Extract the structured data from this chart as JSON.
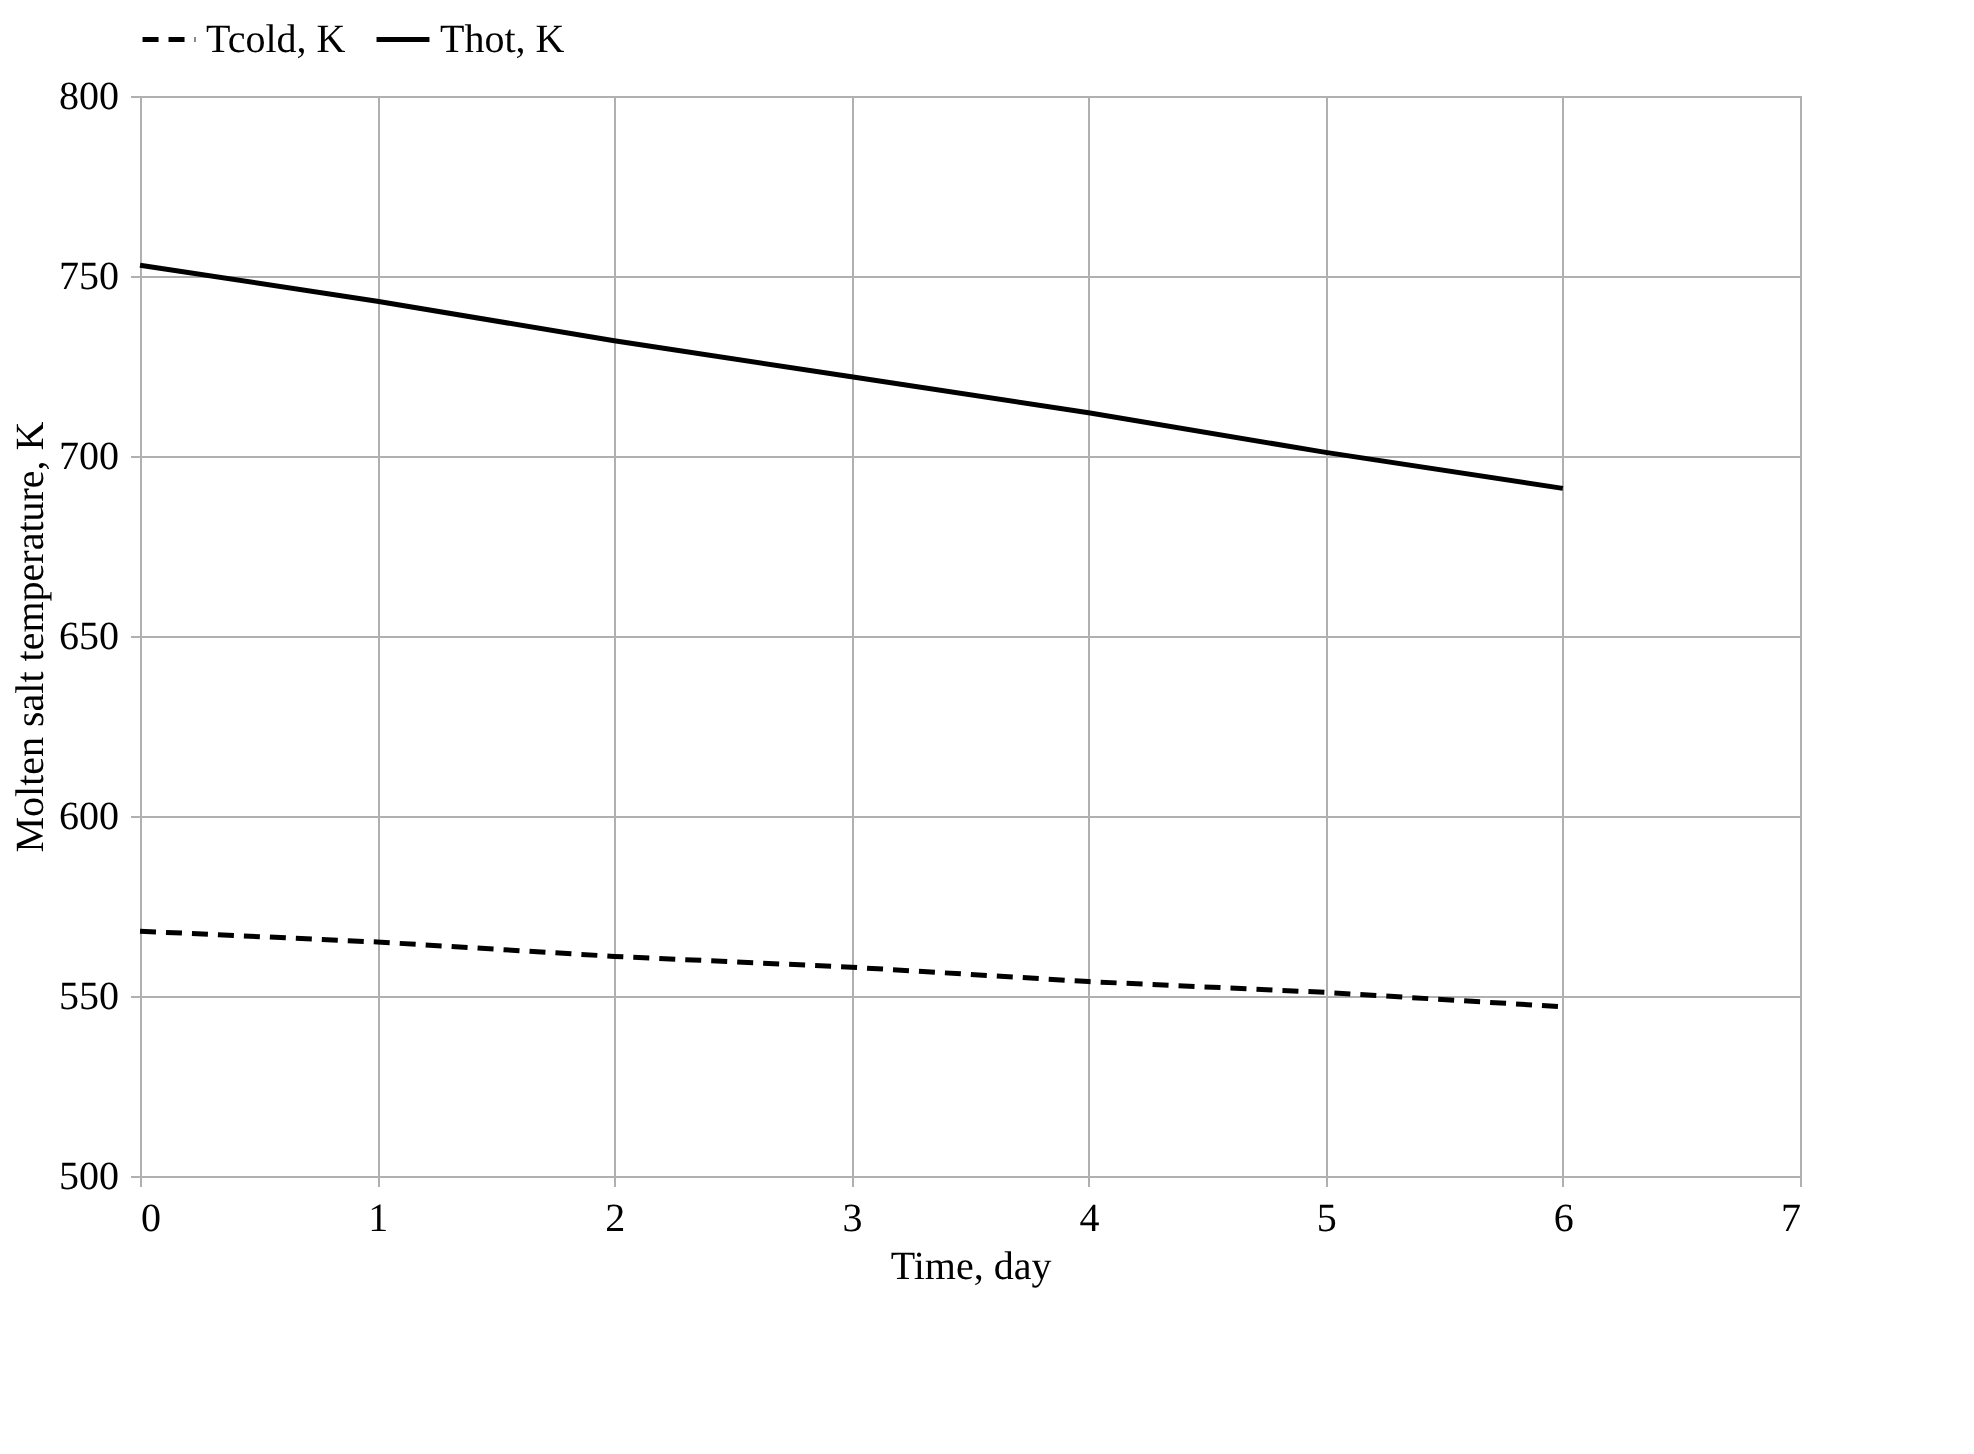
{
  "chart_data": {
    "type": "line",
    "xlabel": "Time, day",
    "ylabel": "Molten salt temperature, K",
    "x": [
      0,
      1,
      2,
      3,
      4,
      5,
      6
    ],
    "series": [
      {
        "name": "Tcold, K",
        "color": "#000000",
        "line_style": "dashed",
        "values": [
          568,
          565,
          561,
          558,
          554,
          551,
          547
        ]
      },
      {
        "name": "Thot, K",
        "color": "#000000",
        "line_style": "solid",
        "values": [
          753,
          743,
          732,
          722,
          712,
          701,
          691
        ]
      }
    ],
    "xlim": [
      0,
      7
    ],
    "xticks": [
      0,
      1,
      2,
      3,
      4,
      5,
      6,
      7
    ],
    "ylim": [
      500,
      800
    ],
    "yticks": [
      500,
      550,
      600,
      650,
      700,
      750,
      800
    ],
    "grid": true,
    "legend": "top",
    "marker": "none"
  }
}
